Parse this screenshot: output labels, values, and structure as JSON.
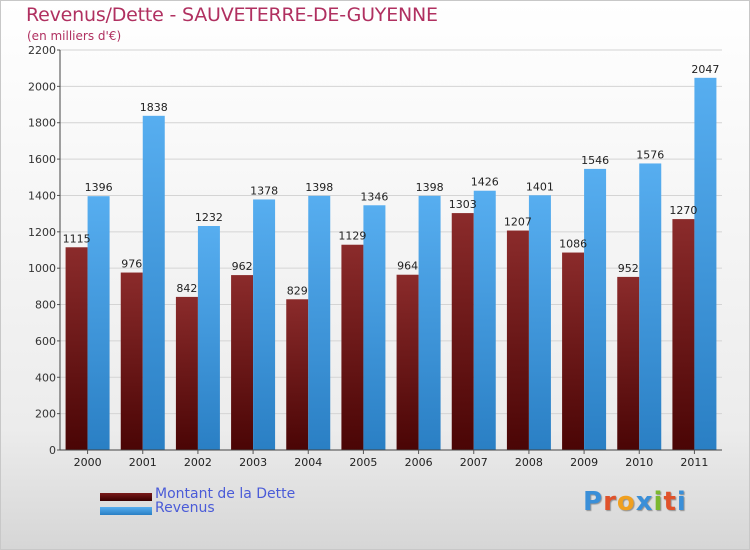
{
  "chart_data": {
    "type": "bar",
    "title": "Revenus/Dette - SAUVETERRE-DE-GUYENNE",
    "subtitle": "(en milliers d'€)",
    "categories": [
      "2000",
      "2001",
      "2002",
      "2003",
      "2004",
      "2005",
      "2006",
      "2007",
      "2008",
      "2009",
      "2010",
      "2011"
    ],
    "series": [
      {
        "name": "Montant de la Dette",
        "color": "#8b1a1a",
        "values": [
          1115,
          976,
          842,
          962,
          829,
          1129,
          964,
          1303,
          1207,
          1086,
          952,
          1270
        ]
      },
      {
        "name": "Revenus",
        "color": "#4da6e8",
        "values": [
          1396,
          1838,
          1232,
          1378,
          1398,
          1346,
          1398,
          1426,
          1401,
          1546,
          1576,
          2047
        ]
      }
    ],
    "ylim": [
      0,
      2200
    ],
    "yticks": [
      0,
      200,
      400,
      600,
      800,
      1000,
      1200,
      1400,
      1600,
      1800,
      2000,
      2200
    ],
    "grid": true,
    "legend_position": "bottom-left"
  },
  "logo": {
    "letters": [
      "P",
      "r",
      "o",
      "x",
      "i",
      "t",
      "i"
    ],
    "colors": [
      "#3a8fd8",
      "#e0522a",
      "#f0a020",
      "#3a8fd8",
      "#7cb82f",
      "#e0522a",
      "#3a8fd8"
    ]
  }
}
